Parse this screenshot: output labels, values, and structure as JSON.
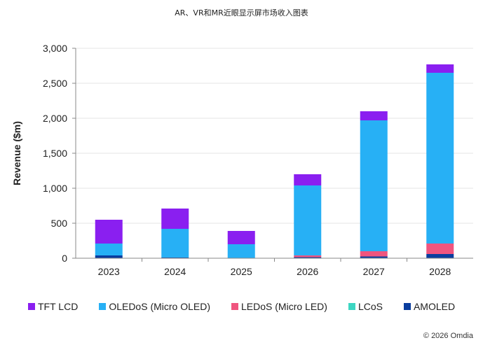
{
  "chart_data": {
    "type": "bar",
    "stacked": true,
    "title": "AR、VR和MR近眼显示屏市场收入图表",
    "xlabel": "",
    "ylabel": "Revenue ($m)",
    "ylim": [
      0,
      3000
    ],
    "yticks": [
      0,
      500,
      1000,
      1500,
      2000,
      2500,
      3000
    ],
    "ytick_labels": [
      "0",
      "500",
      "1,000",
      "1,500",
      "2,000",
      "2,500",
      "3,000"
    ],
    "grid": true,
    "legend_position": "bottom",
    "categories": [
      "2023",
      "2024",
      "2025",
      "2026",
      "2027",
      "2028"
    ],
    "series": [
      {
        "name": "AMOLED",
        "color": "#0a3d9e",
        "values": [
          40,
          10,
          5,
          15,
          25,
          60
        ]
      },
      {
        "name": "LCoS",
        "color": "#3dd6c2",
        "values": [
          0,
          0,
          0,
          0,
          0,
          0
        ]
      },
      {
        "name": "LEDoS (Micro LED)",
        "color": "#f0557f",
        "values": [
          0,
          0,
          0,
          25,
          75,
          150
        ]
      },
      {
        "name": "OLEDoS (Micro OLED)",
        "color": "#27b0f5",
        "values": [
          170,
          410,
          195,
          1000,
          1870,
          2440
        ]
      },
      {
        "name": "TFT LCD",
        "color": "#8a1ff0",
        "values": [
          340,
          290,
          190,
          160,
          130,
          120
        ]
      }
    ],
    "legend_order": [
      "TFT LCD",
      "OLEDoS (Micro OLED)",
      "LEDoS (Micro LED)",
      "LCoS",
      "AMOLED"
    ]
  },
  "credit": "© 2026 Omdia"
}
